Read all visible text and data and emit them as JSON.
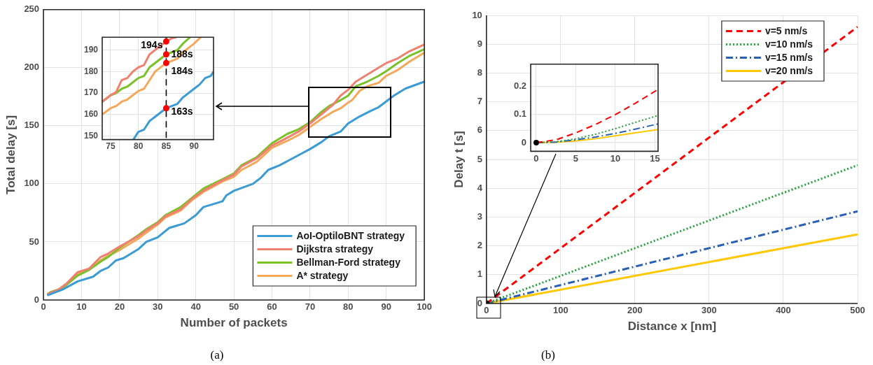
{
  "chart_data": [
    {
      "type": "line",
      "xlabel": "Number of packets",
      "ylabel": "Total delay [s]",
      "xlim": [
        0,
        100
      ],
      "xticks": [
        0,
        10,
        20,
        30,
        40,
        50,
        60,
        70,
        80,
        90,
        100
      ],
      "ylim": [
        0,
        250
      ],
      "yticks": [
        0,
        50,
        100,
        150,
        200,
        250
      ],
      "grid": true,
      "legend": "bottom right",
      "annotations": [
        "(a)"
      ],
      "series": [
        {
          "name": "AoI-OptiloBNT strategy",
          "color": "#3b9bd4",
          "x": [
            1,
            5,
            9,
            13,
            15,
            17,
            19,
            21,
            25,
            27,
            30,
            33,
            37,
            40,
            42,
            47,
            48,
            50,
            55,
            57,
            59,
            62,
            66,
            70,
            73,
            75,
            78,
            80,
            83,
            86,
            88,
            90,
            92,
            95,
            100
          ],
          "values": [
            4,
            9,
            16,
            20,
            25,
            28,
            34,
            36,
            44,
            50,
            54,
            62,
            66,
            73,
            80,
            85,
            90,
            94,
            100,
            105,
            112,
            116,
            123,
            130,
            136,
            141,
            145,
            152,
            158,
            163,
            166,
            171,
            176,
            182,
            188
          ]
        },
        {
          "name": "Dijkstra strategy",
          "color": "#f08070",
          "x": [
            1,
            4,
            6,
            9,
            12,
            15,
            17,
            20,
            25,
            27,
            30,
            32,
            36,
            39,
            42,
            47,
            50,
            52,
            56,
            60,
            63,
            67,
            70,
            73,
            76,
            78,
            80,
            82,
            85,
            88,
            90,
            93,
            96,
            100
          ],
          "values": [
            5,
            9,
            14,
            24,
            27,
            37,
            40,
            46,
            55,
            60,
            66,
            72,
            78,
            87,
            94,
            103,
            108,
            115,
            122,
            133,
            138,
            145,
            152,
            160,
            168,
            176,
            181,
            188,
            194,
            200,
            204,
            208,
            214,
            220
          ]
        },
        {
          "name": "Bellman-Ford strategy",
          "color": "#7ac228",
          "x": [
            1,
            2,
            4,
            6,
            9,
            12,
            15,
            17,
            20,
            25,
            27,
            30,
            32,
            36,
            39,
            42,
            47,
            50,
            52,
            56,
            60,
            64,
            67,
            70,
            73,
            75,
            78,
            80,
            82,
            85,
            88,
            90,
            93,
            96,
            100
          ],
          "values": [
            5,
            7,
            9,
            13,
            21,
            26,
            33,
            37,
            45,
            56,
            61,
            67,
            73,
            80,
            88,
            96,
            104,
            109,
            116,
            123,
            135,
            143,
            147,
            153,
            162,
            167,
            172,
            176,
            184,
            188,
            193,
            197,
            204,
            210,
            216
          ]
        },
        {
          "name": "A* strategy",
          "color": "#f5a85a",
          "x": [
            1,
            4,
            6,
            9,
            12,
            15,
            17,
            20,
            25,
            27,
            30,
            32,
            36,
            39,
            42,
            47,
            50,
            52,
            56,
            60,
            64,
            67,
            70,
            73,
            76,
            78,
            80,
            81,
            83,
            85,
            88,
            90,
            93,
            96,
            100
          ],
          "values": [
            4,
            8,
            13,
            23,
            26,
            34,
            38,
            43,
            53,
            58,
            65,
            71,
            77,
            86,
            93,
            102,
            106,
            112,
            119,
            131,
            137,
            142,
            149,
            156,
            162,
            165,
            170,
            172,
            180,
            184,
            187,
            193,
            198,
            205,
            213
          ]
        }
      ]
    },
    {
      "type": "line",
      "xlim": [
        73.5,
        93.5
      ],
      "xticks": [
        75,
        80,
        85,
        90
      ],
      "ylim": [
        148.4,
        196
      ],
      "yticks": [
        150,
        160,
        170,
        180,
        190
      ],
      "grid": true,
      "ref_lines": [
        {
          "axis": "x",
          "value": 85,
          "color": "#000000",
          "line_style": "dashed"
        }
      ],
      "series": [
        {
          "color": "#f08070",
          "x": [
            73.5,
            75,
            76,
            77,
            78,
            79,
            80,
            81,
            82,
            83,
            85,
            86,
            86.8
          ],
          "values": [
            166,
            169,
            170.5,
            176,
            177,
            180,
            182,
            183,
            188,
            190,
            194,
            195.5,
            196
          ]
        },
        {
          "color": "#7ac228",
          "x": [
            73.5,
            75,
            76,
            77,
            78,
            79,
            80,
            81,
            82,
            84,
            85,
            86,
            87,
            88,
            89.3
          ],
          "values": [
            166,
            169,
            170,
            172,
            173,
            175,
            177,
            178,
            182,
            186,
            188,
            189,
            190,
            193,
            196
          ]
        },
        {
          "color": "#f5a85a",
          "x": [
            73.5,
            75,
            76,
            77,
            78,
            79,
            80,
            81,
            82,
            83,
            85,
            86,
            87,
            88,
            89,
            90,
            91.2
          ],
          "values": [
            160,
            163,
            164,
            166,
            167,
            169,
            171,
            172,
            176,
            180,
            184,
            185,
            186,
            189,
            191,
            193,
            196
          ]
        },
        {
          "color": "#3b9bd4",
          "x": [
            79.1,
            80,
            81,
            82,
            83,
            85,
            86,
            87,
            88,
            90,
            91,
            92,
            93,
            93.5
          ],
          "values": [
            148.4,
            152,
            153,
            157,
            159,
            163,
            164,
            165,
            168,
            172,
            174,
            177,
            178,
            180
          ]
        },
        {
          "type": "scatter",
          "marker": "circle",
          "color": "#ff0000",
          "x": [
            85,
            85,
            85,
            85
          ],
          "values": [
            194,
            188,
            184,
            163
          ],
          "value_labels": [
            "194s",
            "188s",
            "184s",
            "163s"
          ]
        }
      ]
    },
    {
      "type": "line",
      "xlabel": "Distance x [nm]",
      "ylabel": "Delay t [s]",
      "xlim": [
        0,
        500
      ],
      "xticks": [
        0,
        100,
        200,
        300,
        400,
        500
      ],
      "ylim": [
        0,
        10
      ],
      "yticks": [
        0,
        1,
        2,
        3,
        4,
        5,
        6,
        7,
        8,
        9,
        10
      ],
      "grid": true,
      "legend": "top right",
      "annotations": [
        "(b)"
      ],
      "series": [
        {
          "name": "v=5 nm/s",
          "color": "#ff0000",
          "line_style": "dashed",
          "x": [
            0,
            500
          ],
          "values": [
            0,
            9.6
          ]
        },
        {
          "name": "v=10 nm/s",
          "color": "#22a33a",
          "line_style": "dotted",
          "x": [
            0,
            500
          ],
          "values": [
            0,
            4.8
          ]
        },
        {
          "name": "v=15 nm/s",
          "color": "#2a5fb8",
          "line_style": "dashdot",
          "x": [
            0,
            500
          ],
          "values": [
            0,
            3.2
          ]
        },
        {
          "name": "v=20 nm/s",
          "color": "#ffc800",
          "line_style": "solid",
          "x": [
            0,
            500
          ],
          "values": [
            0,
            2.4
          ]
        },
        {
          "type": "scatter",
          "marker": "circle",
          "color": "#000000",
          "x": [
            0
          ],
          "values": [
            0
          ]
        }
      ]
    },
    {
      "type": "line",
      "xlim": [
        -0.7,
        15.4
      ],
      "xticks": [
        0,
        5,
        10,
        15
      ],
      "ylim": [
        -0.031,
        0.28
      ],
      "yticks": [
        0,
        0.1,
        0.2
      ],
      "grid": true,
      "series": [
        {
          "color": "#ff0000",
          "line_style": "dashed",
          "x": [
            0,
            2.5,
            5,
            7.5,
            10,
            12.5,
            15.4
          ],
          "values": [
            0,
            0.01,
            0.035,
            0.065,
            0.1,
            0.14,
            0.19
          ]
        },
        {
          "color": "#22a33a",
          "line_style": "dotted",
          "x": [
            0,
            2.5,
            5,
            7.5,
            10,
            12.5,
            15.4
          ],
          "values": [
            0,
            0.003,
            0.014,
            0.03,
            0.05,
            0.072,
            0.097
          ]
        },
        {
          "color": "#2a5fb8",
          "line_style": "dashdot",
          "x": [
            0,
            2.5,
            5,
            7.5,
            10,
            12.5,
            15.4
          ],
          "values": [
            0,
            0.002,
            0.01,
            0.02,
            0.033,
            0.048,
            0.067
          ]
        },
        {
          "color": "#ffc800",
          "line_style": "solid",
          "x": [
            0,
            2.5,
            5,
            7.5,
            10,
            12.5,
            15.4
          ],
          "values": [
            0,
            0.001,
            0.006,
            0.014,
            0.024,
            0.035,
            0.047
          ]
        },
        {
          "type": "scatter",
          "marker": "circle",
          "color": "#000000",
          "x": [
            0
          ],
          "values": [
            0
          ]
        }
      ]
    }
  ]
}
